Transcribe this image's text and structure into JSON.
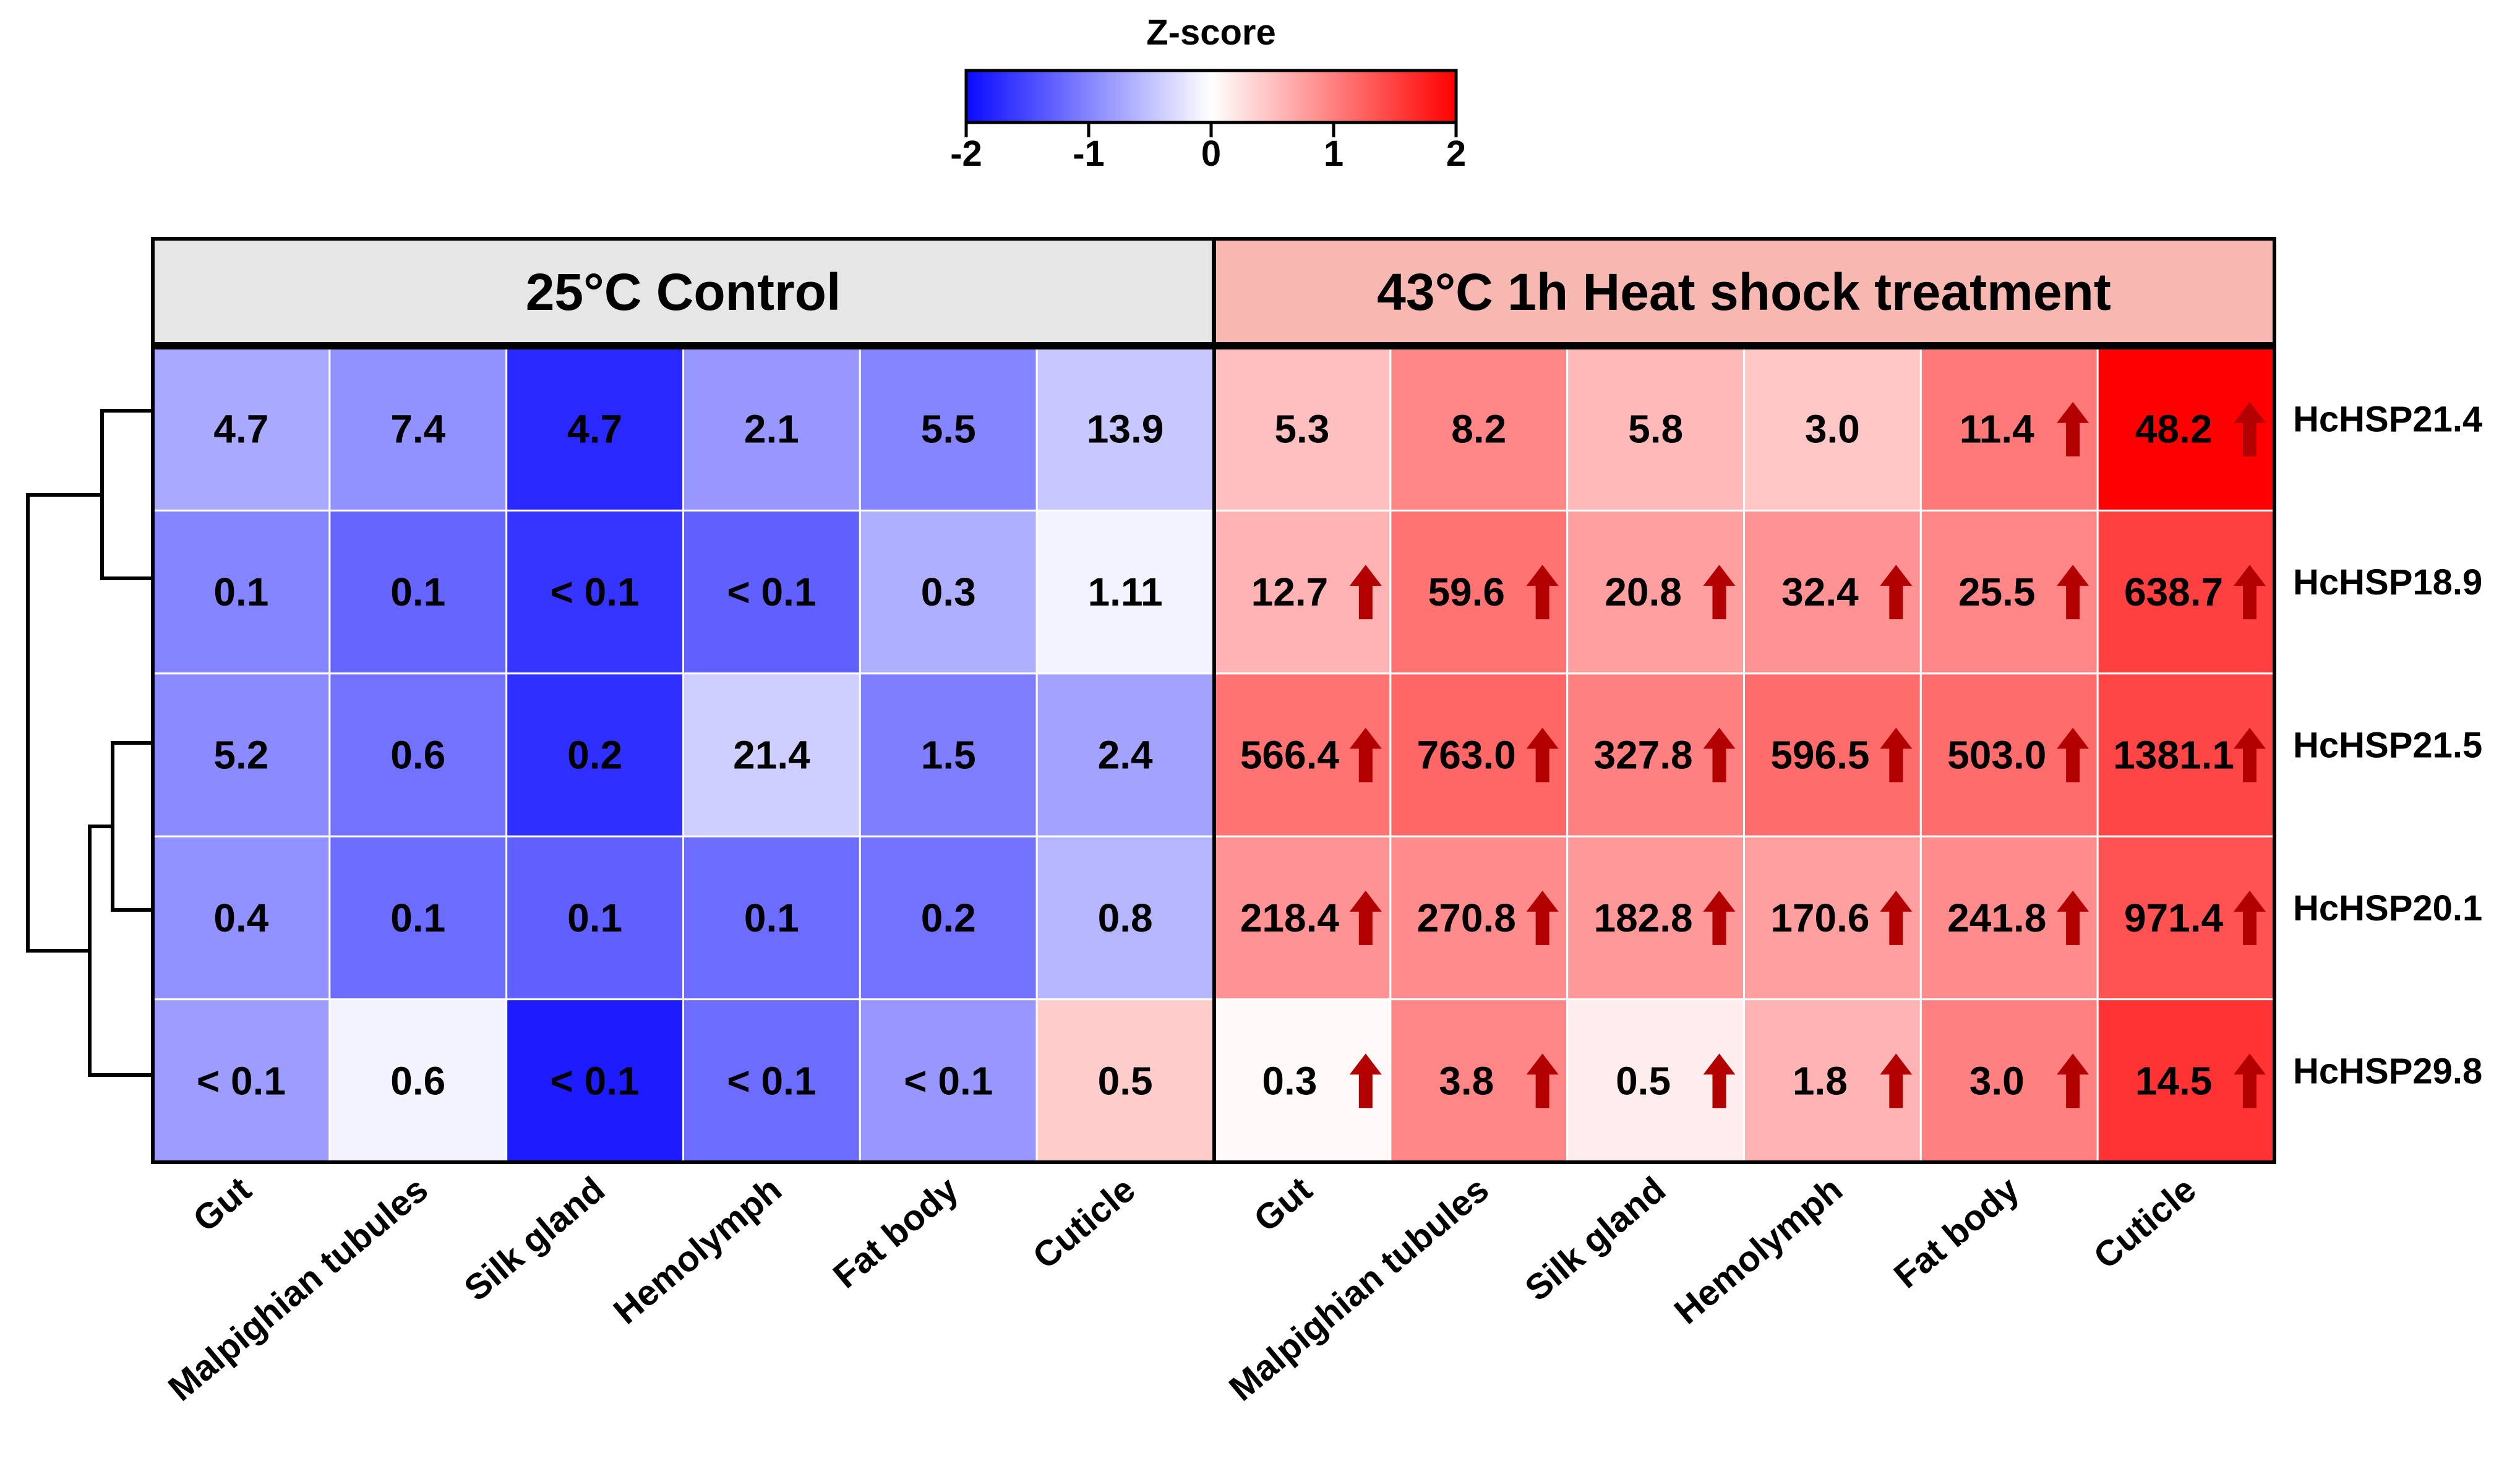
{
  "chart_data": {
    "type": "heatmap",
    "title": "",
    "colorbar": {
      "title": "Z-score",
      "range": [
        -2,
        2
      ],
      "ticks": [
        "-2",
        "-1",
        "0",
        "1",
        "2"
      ],
      "colors": {
        "low": "#0a0aff",
        "mid": "#ffffff",
        "high": "#ff0000"
      }
    },
    "groups": [
      {
        "label": "25°C Control",
        "color": "#e6e6e6"
      },
      {
        "label": "43°C 1h Heat shock treatment",
        "color": "#f6b8b0"
      }
    ],
    "columns": [
      "Gut",
      "Malpighian tubules",
      "Silk gland",
      "Hemolymph",
      "Fat body",
      "Cuticle",
      "Gut",
      "Malpighian tubules",
      "Silk gland",
      "Hemolymph",
      "Fat body",
      "Cuticle"
    ],
    "rows": [
      "HcHSP21.4",
      "HcHSP18.9",
      "HcHSP21.5",
      "HcHSP20.1",
      "HcHSP29.8"
    ],
    "labels": [
      [
        "4.7",
        "7.4",
        "4.7",
        "2.1",
        "5.5",
        "13.9",
        "5.3",
        "8.2",
        "5.8",
        "3.0",
        "11.4",
        "48.2"
      ],
      [
        "0.1",
        "0.1",
        "< 0.1",
        "< 0.1",
        "0.3",
        "1.11",
        "12.7",
        "59.6",
        "20.8",
        "32.4",
        "25.5",
        "638.7"
      ],
      [
        "5.2",
        "0.6",
        "0.2",
        "21.4",
        "1.5",
        "2.4",
        "566.4",
        "763.0",
        "327.8",
        "596.5",
        "503.0",
        "1381.1"
      ],
      [
        "0.4",
        "0.1",
        "0.1",
        "0.1",
        "0.2",
        "0.8",
        "218.4",
        "270.8",
        "182.8",
        "170.6",
        "241.8",
        "971.4"
      ],
      [
        "< 0.1",
        "0.6",
        "< 0.1",
        "< 0.1",
        "< 0.1",
        "0.5",
        "0.3",
        "3.8",
        "0.5",
        "1.8",
        "3.0",
        "14.5"
      ]
    ],
    "zscores": [
      [
        -0.7,
        -0.9,
        -1.75,
        -0.85,
        -1.0,
        -0.45,
        0.5,
        0.95,
        0.55,
        0.45,
        1.05,
        2.0
      ],
      [
        -1.0,
        -1.25,
        -1.65,
        -1.3,
        -0.65,
        -0.1,
        0.6,
        1.1,
        0.75,
        0.85,
        0.95,
        1.5
      ],
      [
        -0.95,
        -1.15,
        -1.7,
        -0.4,
        -1.05,
        -0.75,
        1.1,
        1.2,
        1.0,
        1.15,
        1.15,
        1.45
      ],
      [
        -0.9,
        -1.2,
        -1.3,
        -1.2,
        -1.15,
        -0.6,
        0.85,
        0.9,
        0.8,
        0.75,
        0.9,
        1.35
      ],
      [
        -0.8,
        -0.1,
        -1.85,
        -1.2,
        -0.85,
        0.4,
        0.05,
        0.95,
        0.15,
        0.6,
        1.0,
        1.6
      ]
    ],
    "upregulated": [
      [
        false,
        false,
        false,
        false,
        true,
        true
      ],
      [
        true,
        true,
        true,
        true,
        true,
        true
      ],
      [
        true,
        true,
        true,
        true,
        true,
        true
      ],
      [
        true,
        true,
        true,
        true,
        true,
        true
      ],
      [
        true,
        true,
        true,
        true,
        true,
        true
      ]
    ],
    "arrow_color": "#b30000",
    "dendrogram": "rows clustered: (HcHSP21.4, HcHSP18.9), ((HcHSP21.5, HcHSP20.1), HcHSP29.8)"
  }
}
